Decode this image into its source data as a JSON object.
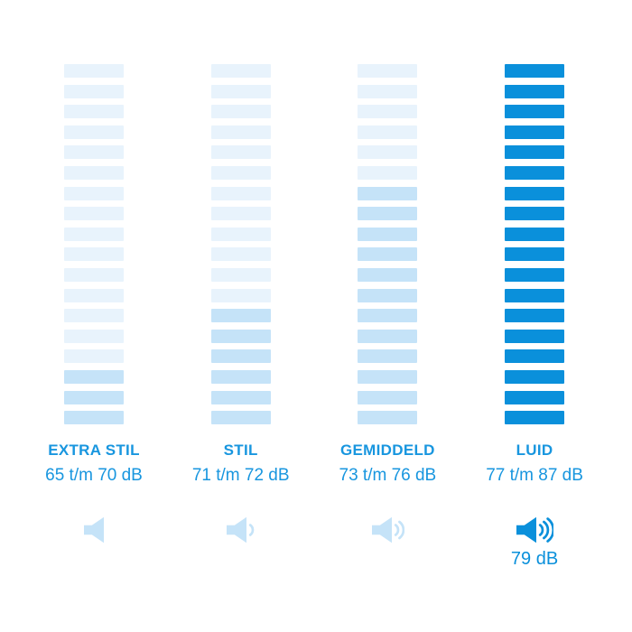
{
  "colors": {
    "background": "#FFFFFF",
    "bar_light": "#E8F3FC",
    "bar_filled": "#C5E3F8",
    "accent_blue": "#0A90DB",
    "text_blue": "#1896DF"
  },
  "chart_data": {
    "type": "bar",
    "subtype": "segmented-level-indicator",
    "orientation": "vertical",
    "legend": "none",
    "grid": "off",
    "unit": "dB",
    "segments_per_column": 18,
    "categories": [
      "EXTRA STIL",
      "STIL",
      "GEMIDDELD",
      "LUID"
    ],
    "series": [
      {
        "name": "EXTRA STIL",
        "range_label": "65 t/m 70 dB",
        "range_min_db": 65,
        "range_max_db": 70,
        "segments_total": 18,
        "segments_filled": 3,
        "speaker_waves": 0,
        "highlighted": false
      },
      {
        "name": "STIL",
        "range_label": "71 t/m 72 dB",
        "range_min_db": 71,
        "range_max_db": 72,
        "segments_total": 18,
        "segments_filled": 6,
        "speaker_waves": 1,
        "highlighted": false
      },
      {
        "name": "GEMIDDELD",
        "range_label": "73 t/m 76 dB",
        "range_min_db": 73,
        "range_max_db": 76,
        "segments_total": 18,
        "segments_filled": 12,
        "speaker_waves": 2,
        "highlighted": false
      },
      {
        "name": "LUID",
        "range_label": "77 t/m 87 dB",
        "range_min_db": 77,
        "range_max_db": 87,
        "segments_total": 18,
        "segments_filled": 18,
        "speaker_waves": 3,
        "highlighted": true,
        "value_label": "79 dB"
      }
    ]
  }
}
